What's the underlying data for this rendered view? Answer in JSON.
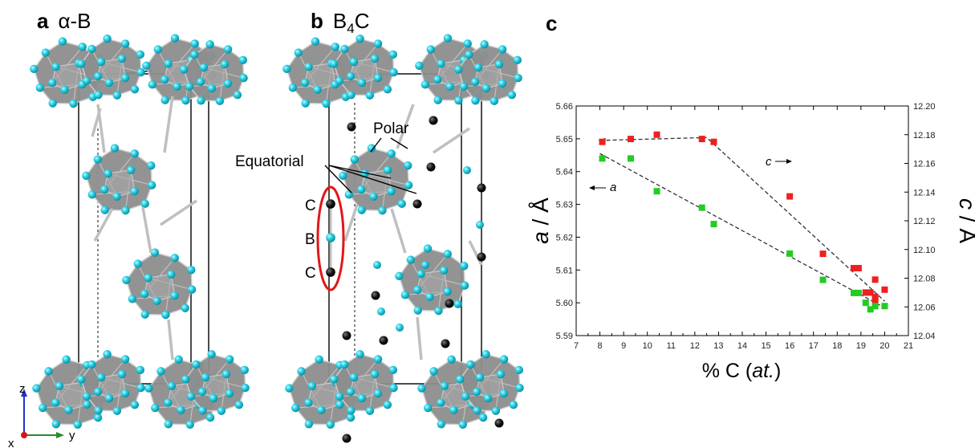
{
  "panels": {
    "a": {
      "letter": "a",
      "title": "α-B"
    },
    "b": {
      "letter": "b",
      "title_main": "B",
      "title_sub": "4",
      "title_end": "C"
    },
    "c": {
      "letter": "c"
    }
  },
  "annotations": {
    "polar": "Polar",
    "equatorial": "Equatorial",
    "chain_top": "C",
    "chain_mid": "B",
    "chain_bottom": "C"
  },
  "axes_triad": {
    "z": "z",
    "y": "y",
    "x": "x"
  },
  "colors": {
    "atom": "#29d3e6",
    "carbon": "#111111",
    "icosahedron": "#8c8c8c",
    "chain_highlight": "#e01818",
    "series_a": "#22cc22",
    "series_c": "#ee2020"
  },
  "chart_data": {
    "type": "scatter",
    "xlabel_plain": "% C (",
    "xlabel_italic": "at.",
    "xlabel_close": ")",
    "ylabel_left_italic": "a",
    "ylabel_left_rest": " / Å",
    "ylabel_right_italic": "c",
    "ylabel_right_rest": " / Å",
    "xlim": [
      7,
      21
    ],
    "ylim_left": [
      5.59,
      5.66
    ],
    "ylim_right": [
      12.04,
      12.2
    ],
    "x_ticks": [
      "7",
      "8",
      "9",
      "10",
      "11",
      "12",
      "13",
      "14",
      "15",
      "16",
      "17",
      "18",
      "19",
      "20",
      "21"
    ],
    "y_left_ticks": [
      "5.59",
      "5.60",
      "5.61",
      "5.62",
      "5.63",
      "5.64",
      "5.65",
      "5.66"
    ],
    "y_right_ticks": [
      "12.04",
      "12.06",
      "12.08",
      "12.10",
      "12.12",
      "12.14",
      "12.16",
      "12.18",
      "12.20"
    ],
    "series": [
      {
        "key": "a",
        "axis": "left",
        "label": "a",
        "x": [
          8.1,
          9.3,
          10.4,
          12.3,
          12.8,
          16.0,
          17.4,
          18.7,
          18.9,
          19.2,
          19.4,
          19.6,
          19.6,
          20.0
        ],
        "y": [
          5.644,
          5.644,
          5.634,
          5.629,
          5.624,
          5.615,
          5.607,
          5.603,
          5.603,
          5.6,
          5.598,
          5.599,
          5.601,
          5.599
        ]
      },
      {
        "key": "c",
        "axis": "right",
        "label": "c",
        "x": [
          8.1,
          9.3,
          10.4,
          12.3,
          12.8,
          16.0,
          17.4,
          18.7,
          18.9,
          19.2,
          19.4,
          19.6,
          19.6,
          19.6,
          20.0
        ],
        "y": [
          12.175,
          12.177,
          12.18,
          12.177,
          12.175,
          12.137,
          12.097,
          12.087,
          12.087,
          12.07,
          12.07,
          12.079,
          12.067,
          12.065,
          12.072
        ]
      }
    ],
    "trend_lines": [
      {
        "axis": "left",
        "x": [
          8.0,
          20.0
        ],
        "y": [
          5.6455,
          5.5985
        ]
      },
      {
        "axis": "right",
        "x": [
          8.0,
          12.5,
          20.0
        ],
        "y": [
          12.176,
          12.178,
          12.064
        ]
      }
    ],
    "arrow_labels": {
      "c": "c",
      "a": "a"
    },
    "grid": false,
    "legend": "none"
  }
}
